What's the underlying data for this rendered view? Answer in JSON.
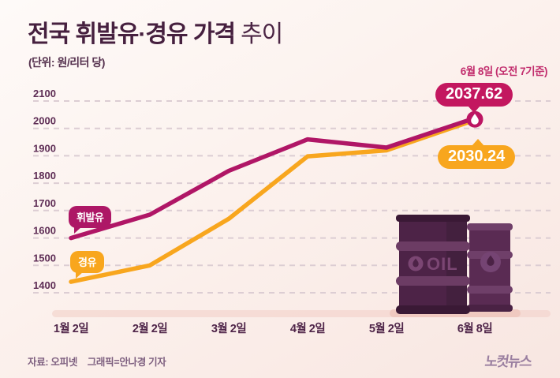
{
  "header": {
    "title_main": "전국 휘발유·경유 가격",
    "title_suffix": "추이",
    "subtitle": "(단위: 원/리터 당)",
    "date_note": "6월 8일 (오전 7기준)"
  },
  "chart_data": {
    "type": "line",
    "categories": [
      "1월 2일",
      "2월 2일",
      "3월 2일",
      "4월 2일",
      "5월 2일",
      "6월 8일"
    ],
    "series": [
      {
        "name": "휘발유",
        "color": "#b01666",
        "values": [
          1600,
          1685,
          1845,
          1960,
          1930,
          2037.62
        ],
        "last_label": "2037.62"
      },
      {
        "name": "경유",
        "color": "#f8a61e",
        "values": [
          1440,
          1500,
          1670,
          1898,
          1920,
          2030.24
        ],
        "last_label": "2030.24"
      }
    ],
    "title": "전국 휘발유·경유 가격 추이",
    "xlabel": "",
    "ylabel": "원/리터",
    "ylim": [
      1400,
      2100
    ],
    "yticks": [
      2100,
      2000,
      1900,
      1800,
      1700,
      1600,
      1500,
      1400
    ],
    "grid": "horizontal-dashed",
    "legend_position": "on-chart speech bubbles near line starts",
    "annotations": [
      "6월 8일 (오전 7기준)",
      "2037.62",
      "2030.24"
    ]
  },
  "value_badges": {
    "gasoline": "2037.62",
    "diesel": "2030.24"
  },
  "illustration": {
    "barrel_label": "OIL"
  },
  "footer": {
    "credit": "자료: 오피넷    그래픽=안나경 기자",
    "logo": "노컷뉴스"
  },
  "colors": {
    "gasoline_line": "#b01666",
    "gasoline_badge": "#c3175f",
    "diesel_line": "#f8a61e",
    "title_text": "#46203f",
    "date_note": "#c22e6e",
    "gridline": "#dccdd3",
    "barrel_dark": "#4d2347",
    "barrel_band": "#6c3c64",
    "background_top": "#fefaf8",
    "background_bottom": "#f8e6e1"
  }
}
